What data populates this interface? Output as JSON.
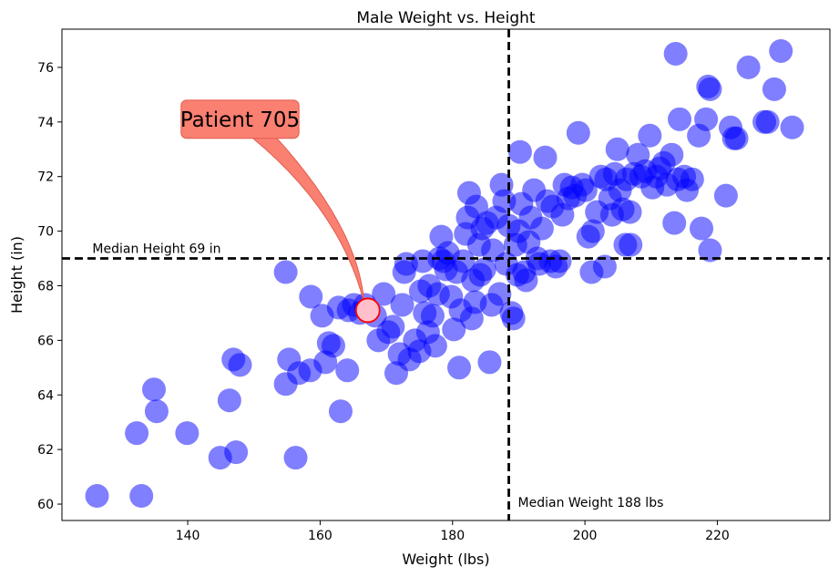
{
  "colors": {
    "point": "#0000ff",
    "highlight_fill": "#ffc0cb",
    "highlight_edge": "#ff0000",
    "callout": "#fa8072",
    "ref_line": "#000000"
  },
  "chart_data": {
    "type": "scatter",
    "title": "Male Weight vs. Height",
    "xlabel": "Weight (lbs)",
    "ylabel": "Height (in)",
    "xlim": [
      121,
      237
    ],
    "ylim": [
      59.4,
      77.4
    ],
    "xticks": [
      140,
      160,
      180,
      200,
      220
    ],
    "yticks": [
      60,
      62,
      64,
      66,
      68,
      70,
      72,
      74,
      76
    ],
    "grid": false,
    "reference_lines": {
      "median_weight": {
        "value": 188.5,
        "label": "Median Weight 188 lbs"
      },
      "median_height": {
        "value": 69.0,
        "label": "Median Height 69 in"
      }
    },
    "highlight": {
      "x": 167.2,
      "y": 67.1,
      "label": "Patient 705"
    },
    "points": [
      [
        126.3,
        60.3
      ],
      [
        133.0,
        60.3
      ],
      [
        132.3,
        62.6
      ],
      [
        139.9,
        62.6
      ],
      [
        135.3,
        63.4
      ],
      [
        134.9,
        64.2
      ],
      [
        144.9,
        61.7
      ],
      [
        147.3,
        61.9
      ],
      [
        146.3,
        63.8
      ],
      [
        146.9,
        65.3
      ],
      [
        147.9,
        65.1
      ],
      [
        154.8,
        64.4
      ],
      [
        155.3,
        65.3
      ],
      [
        156.3,
        61.7
      ],
      [
        156.8,
        64.8
      ],
      [
        158.5,
        64.9
      ],
      [
        160.8,
        65.2
      ],
      [
        161.3,
        65.9
      ],
      [
        162.0,
        65.8
      ],
      [
        163.1,
        63.4
      ],
      [
        164.1,
        64.9
      ],
      [
        154.8,
        68.5
      ],
      [
        158.6,
        67.6
      ],
      [
        160.3,
        66.9
      ],
      [
        162.8,
        67.2
      ],
      [
        164.3,
        67.1
      ],
      [
        165.1,
        67.3
      ],
      [
        166.0,
        67.0
      ],
      [
        166.8,
        67.3
      ],
      [
        168.3,
        66.9
      ],
      [
        168.8,
        66.0
      ],
      [
        169.6,
        67.7
      ],
      [
        170.3,
        66.3
      ],
      [
        171.0,
        66.5
      ],
      [
        171.5,
        64.8
      ],
      [
        172.0,
        65.5
      ],
      [
        172.4,
        67.3
      ],
      [
        172.7,
        68.5
      ],
      [
        173.0,
        68.8
      ],
      [
        173.5,
        65.3
      ],
      [
        174.3,
        66.0
      ],
      [
        175.0,
        65.6
      ],
      [
        175.2,
        67.8
      ],
      [
        175.5,
        68.9
      ],
      [
        175.8,
        67.0
      ],
      [
        176.3,
        66.3
      ],
      [
        176.5,
        68.0
      ],
      [
        177.0,
        66.9
      ],
      [
        177.4,
        65.8
      ],
      [
        177.8,
        67.7
      ],
      [
        178.0,
        69.0
      ],
      [
        178.3,
        69.8
      ],
      [
        178.6,
        68.9
      ],
      [
        179.0,
        68.6
      ],
      [
        179.3,
        69.2
      ],
      [
        179.8,
        67.6
      ],
      [
        180.2,
        66.4
      ],
      [
        180.6,
        68.5
      ],
      [
        181.0,
        65.0
      ],
      [
        181.2,
        67.1
      ],
      [
        181.6,
        68.9
      ],
      [
        182.0,
        69.9
      ],
      [
        182.3,
        70.5
      ],
      [
        182.5,
        71.4
      ],
      [
        182.9,
        66.8
      ],
      [
        183.1,
        68.2
      ],
      [
        183.4,
        67.4
      ],
      [
        183.6,
        70.9
      ],
      [
        184.0,
        69.5
      ],
      [
        184.2,
        68.4
      ],
      [
        184.5,
        70.1
      ],
      [
        184.8,
        68.6
      ],
      [
        185.2,
        70.3
      ],
      [
        185.6,
        65.2
      ],
      [
        185.9,
        67.3
      ],
      [
        186.1,
        69.3
      ],
      [
        186.6,
        70.5
      ],
      [
        187.1,
        67.7
      ],
      [
        187.4,
        71.7
      ],
      [
        187.8,
        71.1
      ],
      [
        188.1,
        68.8
      ],
      [
        188.5,
        70.2
      ],
      [
        188.9,
        67.0
      ],
      [
        189.2,
        66.8
      ],
      [
        189.5,
        69.5
      ],
      [
        189.8,
        68.4
      ],
      [
        190.0,
        70.0
      ],
      [
        190.2,
        72.9
      ],
      [
        190.4,
        71.0
      ],
      [
        190.8,
        68.5
      ],
      [
        191.1,
        68.2
      ],
      [
        191.5,
        69.6
      ],
      [
        191.8,
        70.5
      ],
      [
        192.3,
        71.5
      ],
      [
        192.8,
        69.0
      ],
      [
        193.1,
        68.8
      ],
      [
        193.5,
        70.1
      ],
      [
        194.0,
        72.7
      ],
      [
        194.3,
        71.1
      ],
      [
        194.8,
        68.9
      ],
      [
        195.1,
        70.9
      ],
      [
        195.6,
        68.7
      ],
      [
        196.2,
        68.9
      ],
      [
        196.6,
        70.6
      ],
      [
        196.9,
        71.7
      ],
      [
        197.5,
        71.2
      ],
      [
        198.0,
        71.6
      ],
      [
        198.5,
        71.3
      ],
      [
        199.0,
        73.6
      ],
      [
        199.6,
        71.7
      ],
      [
        200.1,
        71.5
      ],
      [
        200.5,
        69.8
      ],
      [
        201.0,
        68.5
      ],
      [
        201.2,
        70.0
      ],
      [
        201.8,
        70.7
      ],
      [
        202.4,
        72.0
      ],
      [
        203.0,
        68.7
      ],
      [
        203.2,
        71.9
      ],
      [
        203.8,
        71.2
      ],
      [
        204.1,
        70.6
      ],
      [
        204.5,
        72.1
      ],
      [
        204.9,
        73.0
      ],
      [
        205.3,
        71.5
      ],
      [
        205.7,
        70.8
      ],
      [
        206.1,
        69.5
      ],
      [
        206.3,
        71.9
      ],
      [
        206.8,
        70.7
      ],
      [
        206.9,
        69.5
      ],
      [
        207.4,
        72.1
      ],
      [
        208.0,
        72.8
      ],
      [
        208.5,
        72.0
      ],
      [
        209.1,
        72.2
      ],
      [
        209.8,
        73.5
      ],
      [
        210.2,
        71.6
      ],
      [
        210.8,
        72.0
      ],
      [
        211.3,
        72.3
      ],
      [
        211.9,
        72.5
      ],
      [
        212.4,
        71.7
      ],
      [
        213.1,
        72.8
      ],
      [
        213.5,
        70.3
      ],
      [
        214.0,
        71.9
      ],
      [
        214.3,
        74.1
      ],
      [
        215.0,
        72.0
      ],
      [
        215.4,
        71.5
      ],
      [
        216.2,
        71.9
      ],
      [
        217.2,
        73.5
      ],
      [
        217.6,
        70.1
      ],
      [
        218.3,
        74.1
      ],
      [
        218.9,
        69.3
      ],
      [
        218.6,
        75.3
      ],
      [
        218.9,
        75.2
      ],
      [
        213.7,
        76.5
      ],
      [
        221.3,
        71.3
      ],
      [
        222.0,
        73.8
      ],
      [
        222.5,
        73.4
      ],
      [
        222.9,
        73.4
      ],
      [
        224.7,
        76.0
      ],
      [
        227.1,
        74.0
      ],
      [
        227.6,
        74.0
      ],
      [
        228.6,
        75.2
      ],
      [
        229.6,
        76.6
      ],
      [
        231.3,
        73.8
      ]
    ]
  }
}
